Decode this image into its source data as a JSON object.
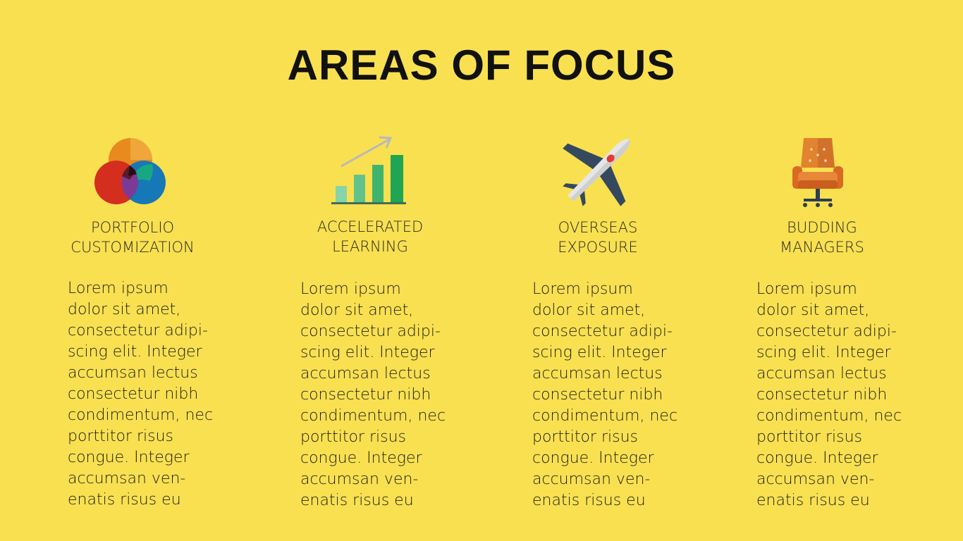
{
  "title": "AREAS OF FOCUS",
  "columns": [
    {
      "icon": "venn-diagram-icon",
      "heading": [
        "PORTFOLIO",
        "CUSTOMIZATION"
      ],
      "body": [
        "Lorem ipsum",
        "dolor sit amet,",
        "consectetur adipi-",
        "scing elit. Integer",
        "accumsan lectus",
        "consectetur nibh",
        "condimentum, nec",
        "porttitor risus",
        "congue. Integer",
        "accumsan ven-",
        "enatis risus eu"
      ]
    },
    {
      "icon": "growth-chart-icon",
      "heading": [
        "ACCELERATED",
        "LEARNING"
      ],
      "body": [
        "Lorem ipsum",
        "dolor sit amet,",
        "consectetur adipi-",
        "scing elit. Integer",
        "accumsan lectus",
        "consectetur nibh",
        "condimentum, nec",
        "porttitor risus",
        "congue. Integer",
        "accumsan ven-",
        "enatis risus eu"
      ]
    },
    {
      "icon": "airplane-icon",
      "heading": [
        "OVERSEAS",
        "EXPOSURE"
      ],
      "body": [
        "Lorem ipsum",
        "dolor sit amet,",
        "consectetur adipi-",
        "scing elit. Integer",
        "accumsan lectus",
        "consectetur nibh",
        "condimentum, nec",
        "porttitor risus",
        "congue. Integer",
        "accumsan ven-",
        "enatis risus eu"
      ]
    },
    {
      "icon": "office-chair-icon",
      "heading": [
        "BUDDING",
        "MANAGERS"
      ],
      "body": [
        "Lorem ipsum",
        "dolor sit amet,",
        "consectetur adipi-",
        "scing elit. Integer",
        "accumsan lectus",
        "consectetur nibh",
        "condimentum, nec",
        "porttitor risus",
        "congue. Integer",
        "accumsan ven-",
        "enatis risus eu"
      ]
    }
  ]
}
